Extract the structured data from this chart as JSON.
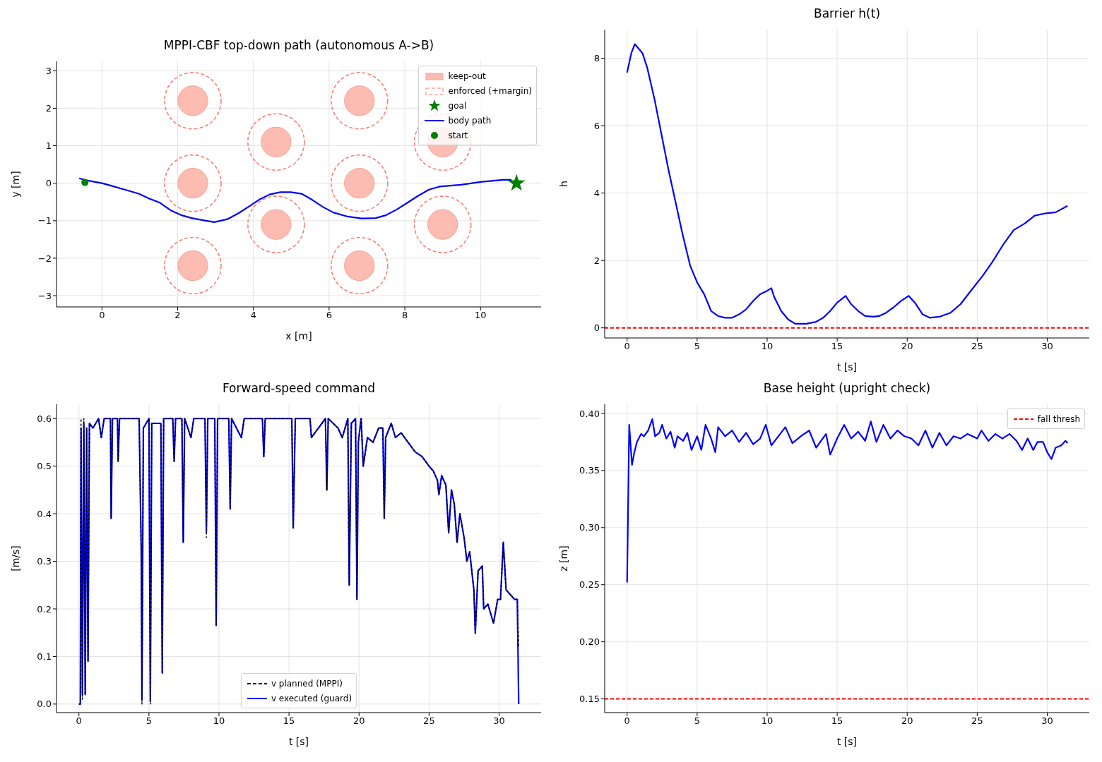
{
  "chart_data": [
    {
      "type": "scatter",
      "title": "MPPI-CBF top-down path (autonomous A->B)",
      "xlabel": "x [m]",
      "ylabel": "y [m]",
      "xlim": [
        -1.2,
        11.6
      ],
      "ylim": [
        -3.3,
        3.25
      ],
      "xticks": [
        0,
        2,
        4,
        6,
        8,
        10
      ],
      "yticks": [
        {
          "value": -3,
          "label": "−3"
        },
        {
          "value": -2,
          "label": "−2"
        },
        {
          "value": -1,
          "label": "−1"
        },
        0,
        1,
        2,
        3
      ],
      "grid": true,
      "legend": "top right",
      "series": [
        {
          "name": "keep-out",
          "type": "bubble",
          "color": "#fcbcb2",
          "x": [
            2.4,
            2.4,
            2.4,
            4.6,
            4.6,
            6.8,
            6.8,
            6.8,
            9.0,
            9.0
          ],
          "values": [
            2.2,
            0,
            -2.2,
            1.1,
            -1.1,
            2.2,
            0,
            -2.2,
            1.1,
            -1.1
          ],
          "sizes": [
            0.28,
            0.28,
            0.28,
            0.28,
            0.28,
            0.28,
            0.28,
            0.28,
            0.28,
            0.28
          ]
        },
        {
          "name": "enforced (+margin)",
          "type": "bubble",
          "color": "#fa8072",
          "line_style": "dashed",
          "x": [
            2.4,
            2.4,
            2.4,
            4.6,
            4.6,
            6.8,
            6.8,
            6.8,
            9.0,
            9.0
          ],
          "values": [
            2.2,
            0,
            -2.2,
            1.1,
            -1.1,
            2.2,
            0,
            -2.2,
            1.1,
            -1.1
          ],
          "sizes": [
            1,
            1,
            1,
            1,
            1,
            1,
            1,
            1,
            1,
            1
          ]
        },
        {
          "name": "goal",
          "marker": "star",
          "color": "#008000",
          "x": [
            10.95
          ],
          "values": [
            0
          ]
        },
        {
          "name": "body path",
          "type": "line",
          "marker": "none",
          "color": "#0000ff",
          "x": [
            -0.6,
            -0.43,
            0,
            0.22,
            0.6,
            0.97,
            1.25,
            1.53,
            1.81,
            2.09,
            2.37,
            2.75,
            2.97,
            3.31,
            3.59,
            3.87,
            4.15,
            4.43,
            4.71,
            4.99,
            5.27,
            5.55,
            5.83,
            6.11,
            6.49,
            6.86,
            7.23,
            7.51,
            7.79,
            8.07,
            8.36,
            8.64,
            8.92,
            9.48,
            10.04,
            10.6,
            10.82
          ],
          "values": [
            0.13,
            0.08,
            0,
            -0.06,
            -0.17,
            -0.28,
            -0.41,
            -0.52,
            -0.72,
            -0.85,
            -0.93,
            -1.0,
            -1.04,
            -0.96,
            -0.81,
            -0.63,
            -0.44,
            -0.3,
            -0.24,
            -0.24,
            -0.28,
            -0.44,
            -0.63,
            -0.78,
            -0.89,
            -0.94,
            -0.93,
            -0.85,
            -0.7,
            -0.52,
            -0.33,
            -0.17,
            -0.09,
            -0.04,
            0.04,
            0.09,
            0.09
          ]
        },
        {
          "name": "start",
          "marker": "circle",
          "color": "#008000",
          "x": [
            -0.45
          ],
          "values": [
            0.02
          ]
        }
      ]
    },
    {
      "type": "line",
      "title": "Barrier h(t)",
      "xlabel": "t [s]",
      "ylabel": "h",
      "xlim": [
        -1.6,
        33
      ],
      "ylim": [
        -0.3,
        8.85
      ],
      "xticks": [
        0,
        5,
        10,
        15,
        20,
        25,
        30
      ],
      "yticks": [
        0,
        2,
        4,
        6,
        8
      ],
      "grid": true,
      "legend": false,
      "ref_lines": [
        {
          "axis": "y",
          "value": 0,
          "color": "#ff0000",
          "line_style": "dashed"
        }
      ],
      "series": [
        {
          "color": "#0000ff",
          "x": [
            0,
            0.3,
            0.55,
            0.8,
            1.1,
            1.45,
            1.95,
            2.45,
            2.95,
            3.45,
            3.95,
            4.5,
            5.0,
            5.5,
            6.0,
            6.5,
            7.0,
            7.5,
            8.0,
            8.5,
            9.0,
            9.5,
            10.0,
            10.3,
            10.5,
            11.0,
            11.5,
            12.0,
            12.8,
            13.5,
            14.0,
            14.5,
            15.0,
            15.6,
            16.0,
            16.5,
            17.0,
            17.6,
            18.0,
            18.5,
            19.0,
            19.5,
            20.1,
            20.6,
            21.1,
            21.6,
            22.3,
            23.1,
            23.8,
            24.6,
            25.4,
            26.1,
            26.9,
            27.6,
            28.4,
            29.1,
            29.9,
            30.6,
            31.45
          ],
          "values": [
            7.58,
            8.15,
            8.42,
            8.3,
            8.15,
            7.7,
            6.8,
            5.75,
            4.7,
            3.75,
            2.8,
            1.85,
            1.35,
            1.0,
            0.5,
            0.35,
            0.3,
            0.3,
            0.4,
            0.55,
            0.8,
            1.0,
            1.1,
            1.18,
            0.92,
            0.5,
            0.25,
            0.12,
            0.12,
            0.18,
            0.3,
            0.5,
            0.75,
            0.95,
            0.7,
            0.5,
            0.35,
            0.33,
            0.35,
            0.45,
            0.6,
            0.78,
            0.95,
            0.72,
            0.4,
            0.3,
            0.33,
            0.45,
            0.7,
            1.13,
            1.55,
            1.97,
            2.5,
            2.9,
            3.1,
            3.33,
            3.4,
            3.43,
            3.62
          ]
        }
      ]
    },
    {
      "type": "line",
      "title": "Forward-speed command",
      "xlabel": "t [s]",
      "ylabel": "[m/s]",
      "xlim": [
        -1.6,
        33
      ],
      "ylim": [
        -0.018,
        0.63
      ],
      "xticks": [
        0,
        5,
        10,
        15,
        20,
        25,
        30
      ],
      "yticks": [
        {
          "value": 0,
          "label": "0.0"
        },
        {
          "value": 0.1,
          "label": "0.1"
        },
        {
          "value": 0.2,
          "label": "0.2"
        },
        {
          "value": 0.3,
          "label": "0.3"
        },
        {
          "value": 0.4,
          "label": "0.4"
        },
        {
          "value": 0.5,
          "label": "0.5"
        },
        {
          "value": 0.6,
          "label": "0.6"
        }
      ],
      "grid": true,
      "legend": "bottom",
      "series": [
        {
          "name": "v planned (MPPI)",
          "color": "#000000",
          "line_style": "dashed",
          "x": [
            0,
            0.1,
            0.15,
            0.25,
            0.35,
            0.45,
            0.55,
            0.65,
            0.75,
            1.0,
            1.4,
            1.6,
            1.8,
            2.25,
            2.3,
            2.4,
            2.75,
            2.8,
            2.9,
            4.3,
            4.45,
            4.5,
            4.6,
            5.0,
            5.1,
            5.2,
            5.85,
            5.95,
            6.05,
            6.7,
            6.8,
            6.9,
            7.35,
            7.45,
            7.55,
            8.0,
            8.2,
            9.0,
            9.1,
            9.2,
            9.7,
            9.8,
            9.9,
            10.7,
            10.8,
            10.9,
            11.6,
            11.8,
            13.1,
            13.2,
            13.3,
            15.2,
            15.3,
            15.45,
            16.5,
            16.6,
            17.6,
            17.7,
            17.8,
            18.5,
            18.8,
            19.2,
            19.3,
            19.45,
            19.75,
            19.85,
            19.95,
            20.15,
            20.3,
            20.6,
            21.0,
            21.4,
            21.7,
            21.8,
            21.9,
            22.3,
            22.6,
            23.0,
            23.5,
            24.0,
            24.5,
            25.0,
            25.3,
            25.6,
            25.7,
            25.9,
            26.2,
            26.4,
            26.6,
            26.8,
            27.0,
            27.2,
            27.5,
            27.7,
            27.9,
            28.2,
            28.3,
            28.5,
            28.8,
            28.9,
            29.2,
            29.4,
            29.6,
            29.9,
            30.1,
            30.3,
            30.5,
            30.8,
            31.1,
            31.3,
            31.4
          ],
          "values": [
            0,
            0,
            0.6,
            0.01,
            0.6,
            0.02,
            0.58,
            0.09,
            0.59,
            0.58,
            0.6,
            0.56,
            0.6,
            0.6,
            0.39,
            0.6,
            0.6,
            0.51,
            0.6,
            0.6,
            0.32,
            0.0,
            0.58,
            0.6,
            0.0,
            0.59,
            0.59,
            0.065,
            0.6,
            0.6,
            0.51,
            0.6,
            0.6,
            0.34,
            0.6,
            0.56,
            0.6,
            0.6,
            0.35,
            0.6,
            0.6,
            0.165,
            0.6,
            0.6,
            0.41,
            0.6,
            0.56,
            0.6,
            0.6,
            0.52,
            0.6,
            0.6,
            0.37,
            0.6,
            0.6,
            0.56,
            0.6,
            0.45,
            0.6,
            0.58,
            0.56,
            0.6,
            0.25,
            0.59,
            0.6,
            0.22,
            0.55,
            0.6,
            0.5,
            0.56,
            0.55,
            0.58,
            0.58,
            0.39,
            0.56,
            0.59,
            0.56,
            0.57,
            0.55,
            0.53,
            0.52,
            0.5,
            0.49,
            0.47,
            0.44,
            0.48,
            0.46,
            0.36,
            0.45,
            0.42,
            0.34,
            0.4,
            0.35,
            0.3,
            0.32,
            0.24,
            0.145,
            0.28,
            0.29,
            0.2,
            0.21,
            0.19,
            0.17,
            0.22,
            0.22,
            0.34,
            0.24,
            0.23,
            0.22,
            0.22,
            0.12
          ]
        },
        {
          "name": "v executed (guard)",
          "color": "#0000ff",
          "x": [
            0,
            0.1,
            0.15,
            0.25,
            0.35,
            0.45,
            0.55,
            0.65,
            0.75,
            1.0,
            1.4,
            1.6,
            1.8,
            2.25,
            2.3,
            2.4,
            2.75,
            2.8,
            2.9,
            4.3,
            4.45,
            4.5,
            4.6,
            5.0,
            5.1,
            5.2,
            5.85,
            5.95,
            6.05,
            6.7,
            6.8,
            6.9,
            7.35,
            7.45,
            7.55,
            8.0,
            8.2,
            9.0,
            9.1,
            9.2,
            9.7,
            9.8,
            9.9,
            10.7,
            10.8,
            10.9,
            11.6,
            11.8,
            13.1,
            13.2,
            13.3,
            15.2,
            15.3,
            15.45,
            16.5,
            16.6,
            17.6,
            17.7,
            17.8,
            18.5,
            18.8,
            19.2,
            19.3,
            19.45,
            19.75,
            19.85,
            19.95,
            20.15,
            20.3,
            20.6,
            21.0,
            21.4,
            21.7,
            21.8,
            21.9,
            22.3,
            22.6,
            23.0,
            23.5,
            24.0,
            24.5,
            25.0,
            25.3,
            25.6,
            25.7,
            25.9,
            26.2,
            26.4,
            26.6,
            26.8,
            27.0,
            27.2,
            27.5,
            27.7,
            27.9,
            28.2,
            28.3,
            28.5,
            28.8,
            28.9,
            29.2,
            29.4,
            29.6,
            29.9,
            30.1,
            30.3,
            30.5,
            30.8,
            31.1,
            31.3,
            31.4
          ],
          "values": [
            0,
            0,
            0.58,
            0.02,
            0.59,
            0.02,
            0.58,
            0.09,
            0.59,
            0.58,
            0.6,
            0.56,
            0.6,
            0.6,
            0.39,
            0.6,
            0.6,
            0.51,
            0.6,
            0.6,
            0.32,
            0.01,
            0.58,
            0.6,
            0.005,
            0.59,
            0.59,
            0.065,
            0.6,
            0.6,
            0.51,
            0.6,
            0.6,
            0.34,
            0.6,
            0.56,
            0.6,
            0.6,
            0.36,
            0.6,
            0.6,
            0.165,
            0.6,
            0.6,
            0.41,
            0.6,
            0.56,
            0.6,
            0.6,
            0.52,
            0.6,
            0.6,
            0.37,
            0.6,
            0.6,
            0.56,
            0.6,
            0.45,
            0.6,
            0.58,
            0.56,
            0.6,
            0.25,
            0.59,
            0.6,
            0.22,
            0.55,
            0.6,
            0.5,
            0.56,
            0.55,
            0.58,
            0.58,
            0.39,
            0.56,
            0.59,
            0.56,
            0.57,
            0.55,
            0.53,
            0.52,
            0.5,
            0.49,
            0.47,
            0.44,
            0.48,
            0.46,
            0.36,
            0.45,
            0.42,
            0.34,
            0.4,
            0.35,
            0.3,
            0.32,
            0.24,
            0.15,
            0.28,
            0.29,
            0.2,
            0.21,
            0.19,
            0.17,
            0.22,
            0.22,
            0.34,
            0.24,
            0.23,
            0.22,
            0.22,
            0.0
          ]
        }
      ]
    },
    {
      "type": "line",
      "title": "Base height (upright check)",
      "xlabel": "t [s]",
      "ylabel": "z [m]",
      "xlim": [
        -1.6,
        33
      ],
      "ylim": [
        0.138,
        0.408
      ],
      "xticks": [
        0,
        5,
        10,
        15,
        20,
        25,
        30
      ],
      "yticks": [
        {
          "value": 0.15,
          "label": "0.15"
        },
        {
          "value": 0.2,
          "label": "0.20"
        },
        {
          "value": 0.25,
          "label": "0.25"
        },
        {
          "value": 0.3,
          "label": "0.30"
        },
        {
          "value": 0.35,
          "label": "0.35"
        },
        {
          "value": 0.4,
          "label": "0.40"
        }
      ],
      "grid": true,
      "legend": "top right",
      "ref_lines": [
        {
          "axis": "y",
          "value": 0.15,
          "label": "fall thresh",
          "color": "#ff0000",
          "line_style": "dashed"
        }
      ],
      "series": [
        {
          "color": "#0000ff",
          "x": [
            0,
            0.15,
            0.35,
            0.5,
            0.7,
            1.0,
            1.2,
            1.5,
            1.8,
            2.0,
            2.3,
            2.5,
            2.8,
            3.1,
            3.4,
            3.6,
            4.0,
            4.3,
            4.6,
            5.0,
            5.3,
            5.6,
            6.0,
            6.3,
            6.5,
            7.0,
            7.5,
            8.0,
            8.5,
            9.0,
            9.5,
            9.9,
            10.3,
            10.8,
            11.3,
            11.8,
            12.4,
            13.0,
            13.5,
            14.2,
            14.5,
            15.0,
            15.5,
            16.0,
            16.5,
            17.0,
            17.4,
            17.8,
            18.3,
            18.8,
            19.3,
            19.8,
            20.3,
            20.8,
            21.3,
            21.8,
            22.3,
            22.8,
            23.3,
            23.8,
            24.3,
            25.0,
            25.3,
            25.8,
            26.3,
            26.8,
            27.3,
            27.8,
            28.2,
            28.6,
            29.0,
            29.3,
            29.7,
            30.0,
            30.3,
            30.6,
            31.0,
            31.3,
            31.45
          ],
          "values": [
            0.252,
            0.39,
            0.355,
            0.365,
            0.375,
            0.382,
            0.38,
            0.385,
            0.395,
            0.38,
            0.383,
            0.39,
            0.378,
            0.384,
            0.37,
            0.38,
            0.376,
            0.383,
            0.368,
            0.38,
            0.368,
            0.39,
            0.378,
            0.366,
            0.388,
            0.38,
            0.385,
            0.375,
            0.383,
            0.373,
            0.378,
            0.39,
            0.372,
            0.38,
            0.388,
            0.374,
            0.38,
            0.385,
            0.37,
            0.382,
            0.364,
            0.378,
            0.39,
            0.378,
            0.384,
            0.376,
            0.393,
            0.375,
            0.39,
            0.378,
            0.385,
            0.38,
            0.378,
            0.372,
            0.385,
            0.37,
            0.383,
            0.372,
            0.38,
            0.378,
            0.382,
            0.378,
            0.385,
            0.376,
            0.382,
            0.378,
            0.382,
            0.376,
            0.368,
            0.378,
            0.368,
            0.375,
            0.375,
            0.366,
            0.36,
            0.37,
            0.372,
            0.376,
            0.374
          ]
        }
      ]
    }
  ]
}
